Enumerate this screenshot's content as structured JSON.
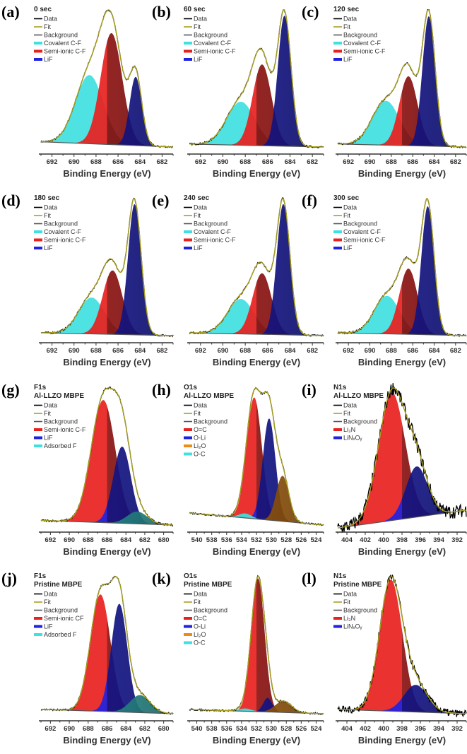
{
  "colors": {
    "data": "#000000",
    "fit": "#a8a020",
    "background": "#555555",
    "Covalent C-F": "#3fe0e0",
    "Semi-ionic C-F": "#e8201e",
    "Semi-ionic CF": "#e8201e",
    "LiF": "#1f22e0",
    "Adsorbed F": "#3fe0e0",
    "O=C": "#e8201e",
    "O-Li": "#1f22e0",
    "Li₂O": "#f08a10",
    "O-C": "#3fe0e0",
    "Li₃N": "#e8201e",
    "LiNₓOᵧ": "#1f22e0"
  },
  "chart_data": [
    {
      "panel": "(a)",
      "type": "area",
      "title": "0 sec",
      "xlabel": "Binding Energy (eV)",
      "xlim": [
        693,
        681
      ],
      "xticks": [
        692,
        690,
        688,
        686,
        684,
        682
      ],
      "legend": [
        "Data",
        "Fit",
        "Background",
        "Covalent C-F",
        "Semi-ionic C-F",
        "LiF"
      ],
      "background": [
        0.04,
        0.0
      ],
      "peaks": [
        {
          "name": "Covalent C-F",
          "center": 688.6,
          "height": 0.53,
          "fwhm": 3.0
        },
        {
          "name": "Semi-ionic C-F",
          "center": 686.6,
          "height": 0.86,
          "fwhm": 2.3
        },
        {
          "name": "LiF",
          "center": 684.4,
          "height": 0.53,
          "fwhm": 1.3
        }
      ]
    },
    {
      "panel": "(b)",
      "type": "area",
      "title": "60 sec",
      "xlabel": "Binding Energy (eV)",
      "xlim": [
        693,
        681
      ],
      "xticks": [
        692,
        690,
        688,
        686,
        684,
        682
      ],
      "legend": [
        "Data",
        "Fit",
        "Background",
        "Covalent C-F",
        "Semi-ionic C-F",
        "LiF"
      ],
      "background": [
        0.02,
        0.0
      ],
      "peaks": [
        {
          "name": "Covalent C-F",
          "center": 688.4,
          "height": 0.3,
          "fwhm": 3.0
        },
        {
          "name": "Semi-ionic C-F",
          "center": 686.5,
          "height": 0.56,
          "fwhm": 2.0
        },
        {
          "name": "LiF",
          "center": 684.5,
          "height": 0.9,
          "fwhm": 1.4
        }
      ]
    },
    {
      "panel": "(c)",
      "type": "area",
      "title": "120 sec",
      "xlabel": "Binding Energy (eV)",
      "xlim": [
        693,
        681
      ],
      "xticks": [
        692,
        690,
        688,
        686,
        684,
        682
      ],
      "legend": [
        "Data",
        "Fit",
        "Background",
        "Covalent C-F",
        "Semi-ionic C-F",
        "LiF"
      ],
      "background": [
        0.02,
        0.0
      ],
      "peaks": [
        {
          "name": "Covalent C-F",
          "center": 688.5,
          "height": 0.3,
          "fwhm": 3.0
        },
        {
          "name": "Semi-ionic C-F",
          "center": 686.4,
          "height": 0.47,
          "fwhm": 2.0
        },
        {
          "name": "LiF",
          "center": 684.5,
          "height": 0.88,
          "fwhm": 1.4
        }
      ]
    },
    {
      "panel": "(d)",
      "type": "area",
      "title": "180 sec",
      "xlabel": "Binding Energy (eV)",
      "xlim": [
        693,
        681
      ],
      "xticks": [
        692,
        690,
        688,
        686,
        684,
        682
      ],
      "legend": [
        "Data",
        "Fit",
        "Background",
        "Covalent C-F",
        "Semi-ionic C-F",
        "LiF"
      ],
      "background": [
        0.02,
        0.0
      ],
      "peaks": [
        {
          "name": "Covalent C-F",
          "center": 688.4,
          "height": 0.25,
          "fwhm": 2.8
        },
        {
          "name": "Semi-ionic C-F",
          "center": 686.5,
          "height": 0.44,
          "fwhm": 2.1
        },
        {
          "name": "LiF",
          "center": 684.5,
          "height": 0.9,
          "fwhm": 1.4
        }
      ]
    },
    {
      "panel": "(e)",
      "type": "area",
      "title": "240 sec",
      "xlabel": "Binding Energy (eV)",
      "xlim": [
        693,
        681
      ],
      "xticks": [
        692,
        690,
        688,
        686,
        684,
        682
      ],
      "legend": [
        "Data",
        "Fit",
        "Background",
        "Covalent C-F",
        "Semi-ionic C-F",
        "LiF"
      ],
      "background": [
        0.02,
        0.0
      ],
      "peaks": [
        {
          "name": "Covalent C-F",
          "center": 688.4,
          "height": 0.24,
          "fwhm": 2.8
        },
        {
          "name": "Semi-ionic C-F",
          "center": 686.5,
          "height": 0.42,
          "fwhm": 2.0
        },
        {
          "name": "LiF",
          "center": 684.6,
          "height": 0.9,
          "fwhm": 1.4
        }
      ]
    },
    {
      "panel": "(f)",
      "type": "area",
      "title": "300 sec",
      "xlabel": "Binding Energy (eV)",
      "xlim": [
        693,
        681
      ],
      "xticks": [
        692,
        690,
        688,
        686,
        684,
        682
      ],
      "legend": [
        "Data",
        "Fit",
        "Background",
        "Covalent C-F",
        "Semi-ionic C-F",
        "LiF"
      ],
      "background": [
        0.02,
        0.0
      ],
      "peaks": [
        {
          "name": "Covalent C-F",
          "center": 688.4,
          "height": 0.26,
          "fwhm": 2.8
        },
        {
          "name": "Semi-ionic C-F",
          "center": 686.4,
          "height": 0.45,
          "fwhm": 2.0
        },
        {
          "name": "LiF",
          "center": 684.6,
          "height": 0.88,
          "fwhm": 1.4
        }
      ]
    },
    {
      "panel": "(g)",
      "type": "area",
      "title": "F1s",
      "subtitle": "Al-LLZO MBPE",
      "xlabel": "Binding Energy (eV)",
      "xlim": [
        693,
        679
      ],
      "xticks": [
        692,
        690,
        688,
        686,
        684,
        682,
        680
      ],
      "legend": [
        "Data",
        "Fit",
        "Background",
        "Semi-ionic C-F",
        "LiF",
        "Adsorbed F"
      ],
      "background": [
        0.03,
        0.0
      ],
      "peaks": [
        {
          "name": "Semi-ionic C-F",
          "center": 686.4,
          "height": 0.8,
          "fwhm": 3.0
        },
        {
          "name": "LiF",
          "center": 684.4,
          "height": 0.5,
          "fwhm": 2.2
        },
        {
          "name": "Adsorbed F",
          "center": 682.8,
          "height": 0.08,
          "fwhm": 2.5
        }
      ]
    },
    {
      "panel": "(h)",
      "type": "area",
      "title": "O1s",
      "subtitle": "Al-LLZO MBPE",
      "xlabel": "Binding Energy (eV)",
      "xlim": [
        541,
        523
      ],
      "xticks": [
        540,
        538,
        536,
        534,
        532,
        530,
        528,
        526,
        524
      ],
      "legend": [
        "Data",
        "Fit",
        "Background",
        "O=C",
        "O-Li",
        "Li₂O",
        "O-C"
      ],
      "background": [
        0.08,
        0.0
      ],
      "peaks": [
        {
          "name": "O=C",
          "center": 532.3,
          "height": 0.8,
          "fwhm": 2.4
        },
        {
          "name": "O-Li",
          "center": 530.3,
          "height": 0.67,
          "fwhm": 2.0
        },
        {
          "name": "Li₂O",
          "center": 528.5,
          "height": 0.3,
          "fwhm": 2.0
        },
        {
          "name": "O-C",
          "center": 533.5,
          "height": 0.03,
          "fwhm": 2.0
        }
      ]
    },
    {
      "panel": "(i)",
      "type": "area",
      "title": "N1s",
      "subtitle": "Al-LLZO MBPE",
      "xlabel": "Binding Energy (eV)",
      "xlim": [
        405,
        391
      ],
      "xticks": [
        404,
        402,
        400,
        398,
        396,
        394,
        392
      ],
      "legend": [
        "Data",
        "Fit",
        "Background",
        "Li₃N",
        "LiNₓOᵧ"
      ],
      "background": [
        -0.02,
        0.1
      ],
      "peaks": [
        {
          "name": "Li₃N",
          "center": 399.1,
          "height": 0.86,
          "fwhm": 3.4
        },
        {
          "name": "LiNₓOᵧ",
          "center": 396.4,
          "height": 0.34,
          "fwhm": 2.8
        }
      ]
    },
    {
      "panel": "(j)",
      "type": "area",
      "title": "F1s",
      "subtitle": "Pristine MBPE",
      "xlabel": "Binding Energy (eV)",
      "xlim": [
        693,
        679
      ],
      "xticks": [
        692,
        690,
        688,
        686,
        684,
        682,
        680
      ],
      "legend": [
        "Data",
        "Fit",
        "Background",
        "Semi-ionic CF",
        "LiF",
        "Adsorbed F"
      ],
      "background": [
        0.03,
        0.0
      ],
      "peaks": [
        {
          "name": "Semi-ionic CF",
          "center": 686.7,
          "height": 0.8,
          "fwhm": 2.5
        },
        {
          "name": "LiF",
          "center": 684.7,
          "height": 0.74,
          "fwhm": 2.0
        },
        {
          "name": "Adsorbed F",
          "center": 682.5,
          "height": 0.12,
          "fwhm": 2.5
        }
      ]
    },
    {
      "panel": "(k)",
      "type": "area",
      "title": "O1s",
      "subtitle": "Pristine MBPE",
      "xlabel": "Binding Energy (eV)",
      "xlim": [
        541,
        523
      ],
      "xticks": [
        540,
        538,
        536,
        534,
        532,
        530,
        528,
        526,
        524
      ],
      "legend": [
        "Data",
        "Fit",
        "Background",
        "O=C",
        "O-Li",
        "Li₂O",
        "O-C"
      ],
      "background": [
        0.03,
        0.0
      ],
      "peaks": [
        {
          "name": "O=C",
          "center": 531.8,
          "height": 0.95,
          "fwhm": 2.1
        },
        {
          "name": "O-Li",
          "center": 530.5,
          "height": 0.1,
          "fwhm": 1.4
        },
        {
          "name": "Li₂O",
          "center": 528.4,
          "height": 0.08,
          "fwhm": 2.6
        },
        {
          "name": "O-C",
          "center": 533.5,
          "height": 0.02,
          "fwhm": 2.0
        }
      ]
    },
    {
      "panel": "(l)",
      "type": "area",
      "title": "N1s",
      "subtitle": "Pristine MBPE",
      "xlabel": "Binding Energy (eV)",
      "xlim": [
        405,
        391
      ],
      "xticks": [
        404,
        402,
        400,
        398,
        396,
        394,
        392
      ],
      "legend": [
        "Data",
        "Fit",
        "Background",
        "Li₃N",
        "LiNₓOᵧ"
      ],
      "background": [
        0.03,
        0.0
      ],
      "peaks": [
        {
          "name": "Li₃N",
          "center": 399.2,
          "height": 0.92,
          "fwhm": 2.9
        },
        {
          "name": "LiNₓOᵧ",
          "center": 396.5,
          "height": 0.19,
          "fwhm": 3.0
        }
      ]
    }
  ]
}
